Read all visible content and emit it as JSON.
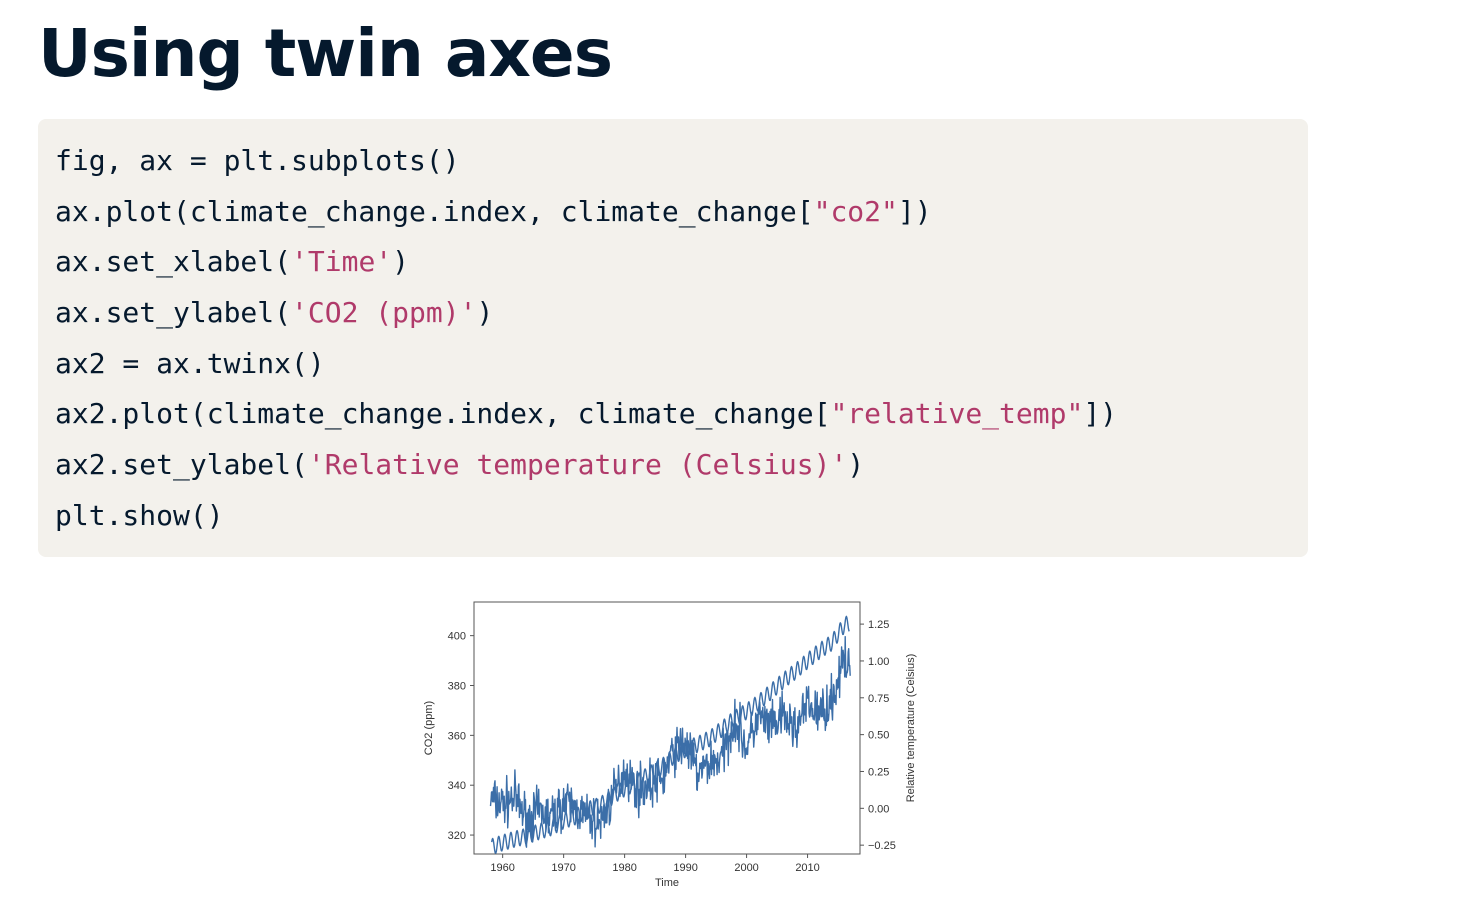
{
  "slide": {
    "title": "Using twin axes"
  },
  "code": {
    "lines": [
      [
        {
          "t": "fig, ax = plt.subplots()",
          "s": false
        }
      ],
      [
        {
          "t": "ax.plot(climate_change.index, climate_change[",
          "s": false
        },
        {
          "t": "\"co2\"",
          "s": true
        },
        {
          "t": "])",
          "s": false
        }
      ],
      [
        {
          "t": "ax.set_xlabel(",
          "s": false
        },
        {
          "t": "'Time'",
          "s": true
        },
        {
          "t": ")",
          "s": false
        }
      ],
      [
        {
          "t": "ax.set_ylabel(",
          "s": false
        },
        {
          "t": "'CO2 (ppm)'",
          "s": true
        },
        {
          "t": ")",
          "s": false
        }
      ],
      [
        {
          "t": "ax2 = ax.twinx()",
          "s": false
        }
      ],
      [
        {
          "t": "ax2.plot(climate_change.index, climate_change[",
          "s": false
        },
        {
          "t": "\"relative_temp\"",
          "s": true
        },
        {
          "t": "])",
          "s": false
        }
      ],
      [
        {
          "t": "ax2.set_ylabel(",
          "s": false
        },
        {
          "t": "'Relative temperature (Celsius)'",
          "s": true
        },
        {
          "t": ")",
          "s": false
        }
      ],
      [
        {
          "t": "plt.show()",
          "s": false
        }
      ]
    ]
  },
  "chart_data": {
    "type": "line",
    "xlabel": "Time",
    "ylabel": "CO2 (ppm)",
    "y2label": "Relative temperature (Celsius)",
    "xlim": [
      1955.3,
      2018.6
    ],
    "ylim": [
      312.4,
      413.5
    ],
    "y2lim": [
      -0.31,
      1.4
    ],
    "x_ticks": [
      1960,
      1970,
      1980,
      1990,
      2000,
      2010
    ],
    "y_ticks": [
      320,
      340,
      360,
      380,
      400
    ],
    "y2_ticks": [
      -0.25,
      0.0,
      0.25,
      0.5,
      0.75,
      1.0,
      1.25
    ],
    "y2_tick_labels": [
      "−0.25",
      "0.00",
      "0.25",
      "0.50",
      "0.75",
      "1.00",
      "1.25"
    ],
    "grid": false,
    "line_color": "#3b6ea8",
    "series": [
      {
        "name": "co2",
        "axis": "left",
        "x": [
          1958.2,
          1960,
          1962,
          1964,
          1966,
          1968,
          1970,
          1972,
          1974,
          1976,
          1978,
          1980,
          1982,
          1984,
          1986,
          1988,
          1990,
          1992,
          1994,
          1996,
          1998,
          2000,
          2002,
          2004,
          2006,
          2008,
          2010,
          2012,
          2014,
          2016,
          2016.9
        ],
        "values": [
          315.3,
          316.9,
          318.4,
          319.6,
          321.4,
          323.0,
          325.7,
          327.4,
          330.2,
          332.1,
          335.4,
          338.7,
          341.1,
          344.4,
          347.2,
          351.5,
          354.4,
          356.4,
          358.8,
          362.6,
          366.7,
          369.6,
          373.2,
          377.5,
          381.9,
          385.6,
          389.9,
          393.9,
          397.2,
          404.2,
          405.0
        ],
        "seasonal_amplitude_ppm": 3.2
      },
      {
        "name": "relative_temp",
        "axis": "right",
        "x": [
          1958,
          1960,
          1962,
          1964,
          1966,
          1968,
          1970,
          1972,
          1974,
          1976,
          1978,
          1980,
          1982,
          1984,
          1986,
          1988,
          1990,
          1992,
          1994,
          1996,
          1998,
          2000,
          2002,
          2004,
          2006,
          2008,
          2010,
          2012,
          2014,
          2016,
          2017
        ],
        "values": [
          0.06,
          0.03,
          0.07,
          -0.07,
          -0.02,
          -0.06,
          0.04,
          0.0,
          -0.07,
          -0.1,
          0.07,
          0.26,
          0.13,
          0.16,
          0.19,
          0.38,
          0.45,
          0.23,
          0.31,
          0.34,
          0.61,
          0.41,
          0.62,
          0.54,
          0.62,
          0.54,
          0.7,
          0.64,
          0.74,
          1.0,
          0.92
        ],
        "monthly_noise_sd": 0.11
      }
    ]
  }
}
